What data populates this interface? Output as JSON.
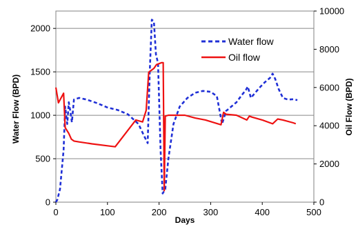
{
  "chart_data": {
    "type": "line",
    "title": "",
    "xlabel": "Days",
    "ylabel_left": "Water Flow (BPD)",
    "ylabel_right": "Oil Flow (BPD)",
    "xlim": [
      0,
      500
    ],
    "ylim_left": [
      0,
      2200
    ],
    "ylim_right": [
      0,
      10000
    ],
    "x_ticks": [
      "0",
      "100",
      "200",
      "300",
      "400",
      "500"
    ],
    "y_left_ticks": [
      "0",
      "500",
      "1000",
      "1500",
      "2000"
    ],
    "y_right_ticks": [
      "0",
      "2000",
      "4000",
      "6000",
      "8000",
      "10000"
    ],
    "grid": "horizontal",
    "legend_position": "top-right",
    "series": [
      {
        "name": "Water flow",
        "axis": "left",
        "style": "dashed",
        "color": "#1f2fd6",
        "x": [
          0,
          3,
          8,
          15,
          18,
          22,
          25,
          28,
          31,
          35,
          45,
          60,
          80,
          100,
          120,
          140,
          160,
          172,
          178,
          182,
          186,
          190,
          194,
          198,
          203,
          207,
          212,
          218,
          228,
          240,
          255,
          270,
          285,
          300,
          312,
          322,
          330,
          340,
          350,
          360,
          368,
          372,
          378,
          385,
          395,
          405,
          415,
          420,
          425,
          432,
          440,
          450,
          460,
          468
        ],
        "y": [
          0,
          30,
          150,
          600,
          1100,
          900,
          1150,
          1050,
          920,
          1180,
          1200,
          1180,
          1140,
          1090,
          1060,
          1010,
          900,
          750,
          680,
          1500,
          2100,
          2080,
          1700,
          1600,
          600,
          100,
          150,
          500,
          900,
          1100,
          1200,
          1260,
          1280,
          1270,
          1220,
          900,
          1050,
          1100,
          1150,
          1230,
          1290,
          1330,
          1200,
          1250,
          1320,
          1380,
          1430,
          1480,
          1420,
          1300,
          1200,
          1180,
          1185,
          1175
        ]
      },
      {
        "name": "Oil flow",
        "axis": "right",
        "style": "solid",
        "color": "#ee1111",
        "x": [
          0,
          5,
          15,
          18,
          25,
          30,
          35,
          45,
          70,
          100,
          115,
          155,
          168,
          175,
          180,
          185,
          190,
          195,
          205,
          208,
          210,
          212,
          218,
          230,
          250,
          270,
          290,
          320,
          325,
          330,
          350,
          370,
          375,
          380,
          400,
          420,
          430,
          440,
          460,
          465
        ],
        "y": [
          6000,
          5200,
          5700,
          3900,
          3600,
          3300,
          3200,
          3150,
          3050,
          2950,
          2900,
          4300,
          4200,
          4800,
          6800,
          6900,
          7000,
          7200,
          7300,
          7300,
          600,
          4500,
          4550,
          4550,
          4550,
          4400,
          4300,
          4050,
          4700,
          4600,
          4550,
          4300,
          4500,
          4450,
          4300,
          4100,
          4350,
          4300,
          4150,
          4100
        ]
      }
    ]
  }
}
